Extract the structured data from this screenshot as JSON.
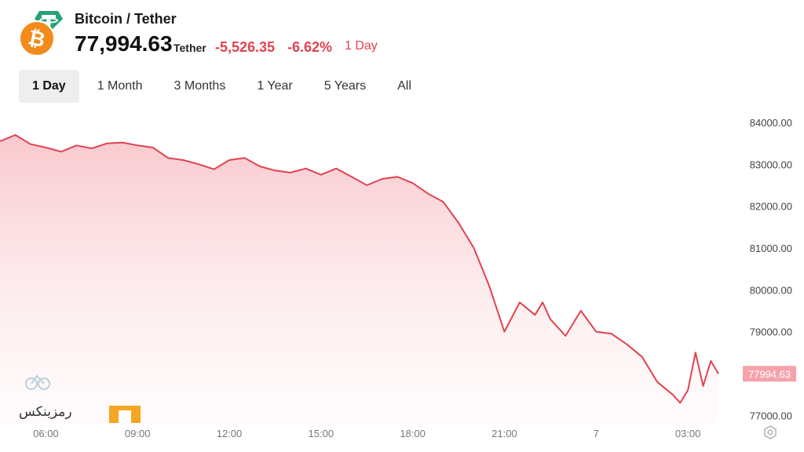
{
  "header": {
    "pair_title": "Bitcoin / Tether",
    "price": "77,994.63",
    "unit": "Tether",
    "change": "-5,526.35",
    "change_pct": "-6.62%",
    "period": "1 Day"
  },
  "icons": {
    "base_coin": "bitcoin-icon",
    "quote_coin": "tether-icon",
    "base_coin_glyph": "₿",
    "base_color": "#f28b1b",
    "quote_color": "#26a17b"
  },
  "tabs": [
    {
      "label": "1 Day",
      "active": true
    },
    {
      "label": "1 Month",
      "active": false
    },
    {
      "label": "3 Months",
      "active": false
    },
    {
      "label": "1 Year",
      "active": false
    },
    {
      "label": "5 Years",
      "active": false
    },
    {
      "label": "All",
      "active": false
    }
  ],
  "watermark": {
    "text": "رمزینکس"
  },
  "colors": {
    "line": "#e0434f",
    "fill": "#fbd5d9",
    "accent_red": "#e0434f",
    "axis_text": "#444444"
  },
  "chart_data": {
    "type": "area",
    "series": [
      {
        "x": [
          "04:30",
          "05:00",
          "05:30",
          "06:00",
          "06:30",
          "07:00",
          "07:30",
          "08:00",
          "08:30",
          "09:00",
          "09:30",
          "10:00",
          "10:30",
          "11:00",
          "11:30",
          "12:00",
          "12:30",
          "13:00",
          "13:30",
          "14:00",
          "14:30",
          "15:00",
          "15:30",
          "16:00",
          "16:30",
          "17:00",
          "17:30",
          "18:00",
          "18:30",
          "19:00",
          "19:30",
          "20:00",
          "20:30",
          "21:00",
          "21:30",
          "22:00",
          "22:15",
          "22:30",
          "23:00",
          "23:30",
          "00:00",
          "00:30",
          "01:00",
          "01:30",
          "02:00",
          "02:30",
          "02:45",
          "03:00",
          "03:15",
          "03:30",
          "03:45",
          "04:00"
        ],
        "values": [
          83550,
          83700,
          83480,
          83400,
          83300,
          83450,
          83380,
          83500,
          83520,
          83450,
          83400,
          83150,
          83100,
          83000,
          82880,
          83100,
          83150,
          82950,
          82850,
          82800,
          82900,
          82750,
          82900,
          82700,
          82500,
          82650,
          82700,
          82550,
          82300,
          82100,
          81600,
          81000,
          80100,
          79000,
          79700,
          79400,
          79700,
          79300,
          78900,
          79500,
          79000,
          78950,
          78700,
          78400,
          77800,
          77500,
          77300,
          77600,
          78500,
          77700,
          78300,
          77994.63
        ]
      }
    ],
    "x_ticks": [
      "06:00",
      "09:00",
      "12:00",
      "15:00",
      "18:00",
      "21:00",
      "7",
      "03:00"
    ],
    "y_ticks": [
      "84000.00",
      "83000.00",
      "82000.00",
      "81000.00",
      "80000.00",
      "79000.00",
      "77000.00"
    ],
    "last_value_label": "77994.63",
    "ylim": [
      76800,
      84300
    ],
    "grid": false
  }
}
